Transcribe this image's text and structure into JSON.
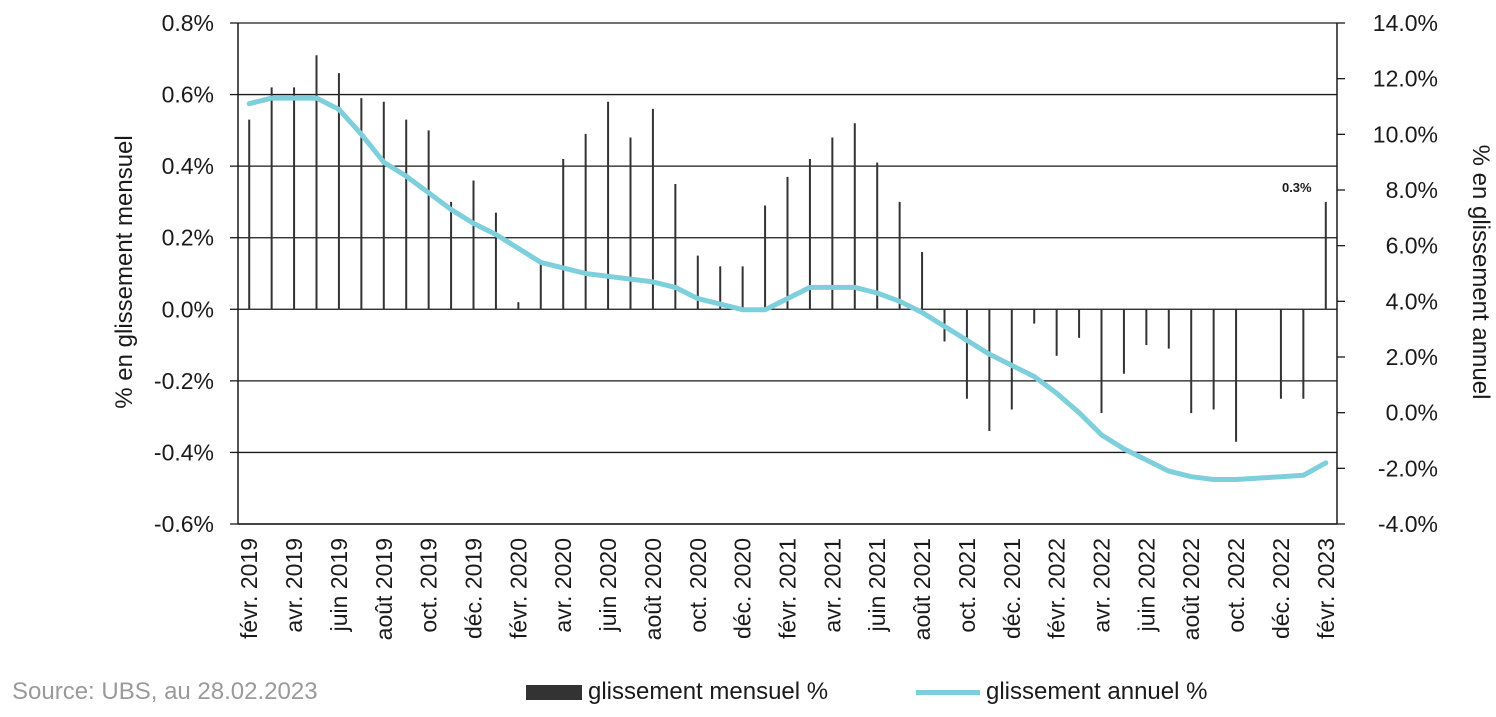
{
  "chart_data": {
    "type": "bar+line",
    "y_left_label": "% en glissement mensuel",
    "y_right_label": "% en glissement annuel",
    "y_left_range": [
      -0.6,
      0.8
    ],
    "y_right_range": [
      -4.0,
      14.0
    ],
    "y_left_ticks": [
      "0.8%",
      "0.6%",
      "0.4%",
      "0.2%",
      "0.0%",
      "-0.2%",
      "-0.4%",
      "-0.6%"
    ],
    "y_right_ticks": [
      "14.0%",
      "12.0%",
      "10.0%",
      "8.0%",
      "6.0%",
      "4.0%",
      "2.0%",
      "0.0%",
      "-2.0%",
      "-4.0%"
    ],
    "x_tick_labels": [
      "févr. 2019",
      "avr. 2019",
      "juin 2019",
      "août 2019",
      "oct. 2019",
      "déc. 2019",
      "févr. 2020",
      "avr. 2020",
      "juin 2020",
      "août 2020",
      "oct. 2020",
      "déc. 2020",
      "févr. 2021",
      "avr. 2021",
      "juin 2021",
      "août 2021",
      "oct. 2021",
      "déc. 2021",
      "févr. 2022",
      "avr. 2022",
      "juin 2022",
      "août 2022",
      "oct. 2022",
      "déc. 2022",
      "févr. 2023"
    ],
    "grid": "horizontal",
    "series": [
      {
        "name": "glissement mensuel %",
        "type": "bar",
        "color": "#333333",
        "axis": "left",
        "values": [
          0.53,
          0.62,
          0.62,
          0.71,
          0.66,
          0.59,
          0.58,
          0.53,
          0.5,
          0.3,
          0.36,
          0.27,
          0.02,
          0.13,
          0.42,
          0.49,
          0.58,
          0.48,
          0.56,
          0.35,
          0.15,
          0.12,
          0.12,
          0.29,
          0.37,
          0.42,
          0.48,
          0.52,
          0.41,
          0.3,
          0.16,
          -0.09,
          -0.25,
          -0.34,
          -0.28,
          -0.04,
          -0.13,
          -0.08,
          -0.29,
          -0.18,
          -0.1,
          -0.11,
          -0.29,
          -0.28,
          -0.37,
          0.0,
          -0.25,
          -0.25,
          0.3
        ]
      },
      {
        "name": "glissement annuel %",
        "type": "line",
        "color": "#7ecfdc",
        "axis": "right",
        "values": [
          11.1,
          11.3,
          11.3,
          11.3,
          10.9,
          10.0,
          9.0,
          8.5,
          7.9,
          7.3,
          6.8,
          6.4,
          5.9,
          5.4,
          5.2,
          5.0,
          4.9,
          4.8,
          4.7,
          4.5,
          4.1,
          3.9,
          3.7,
          3.7,
          4.1,
          4.5,
          4.5,
          4.5,
          4.3,
          4.0,
          3.6,
          3.1,
          2.6,
          2.1,
          1.7,
          1.3,
          0.7,
          0.0,
          -0.8,
          -1.3,
          -1.7,
          -2.1,
          -2.3,
          -2.4,
          -2.4,
          -2.35,
          -2.3,
          -2.25,
          -1.8
        ]
      }
    ],
    "annotation": "0.3%"
  },
  "footer": {
    "source": "Source: UBS, au 28.02.2023"
  },
  "legend": {
    "bar_label": "glissement mensuel %",
    "line_label": "glissement annuel %"
  }
}
